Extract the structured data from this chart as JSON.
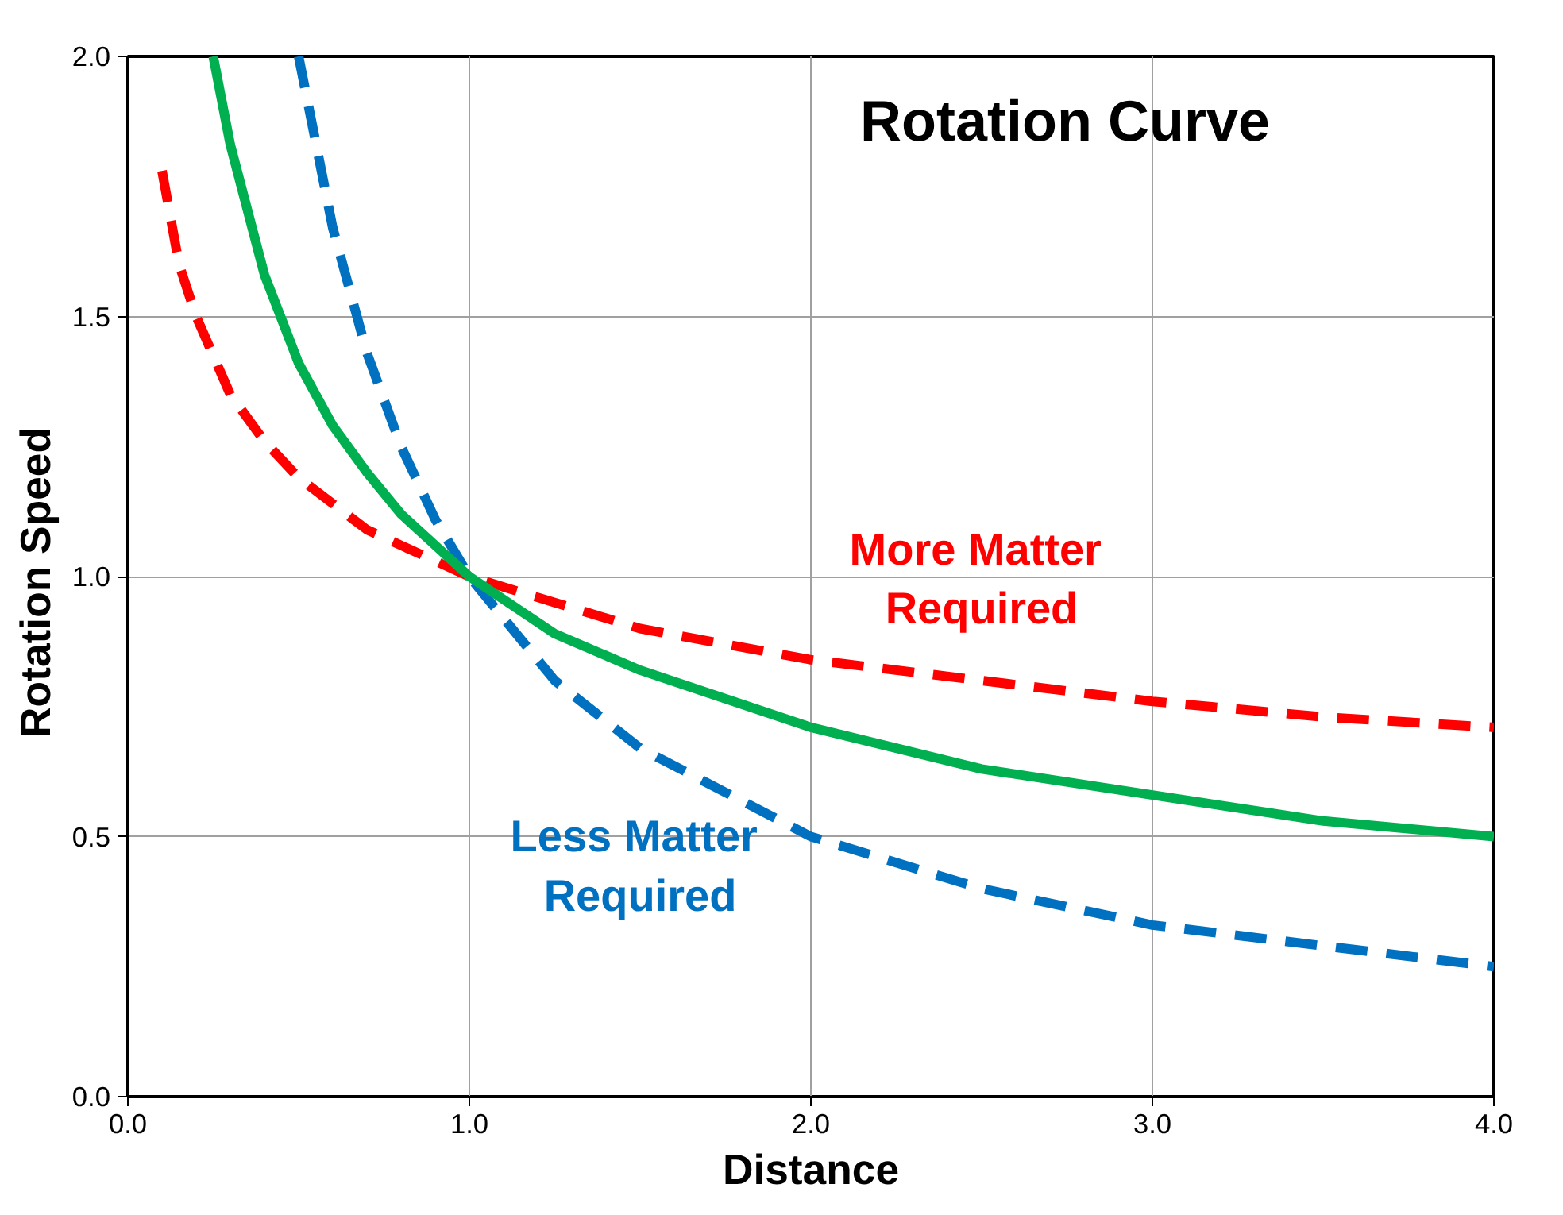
{
  "chart_data": {
    "type": "line",
    "title": "Rotation Curve",
    "xlabel": "Distance",
    "ylabel": "Rotation  Speed",
    "xlim": [
      0,
      4
    ],
    "ylim": [
      0,
      2
    ],
    "xticks": [
      {
        "value": 0,
        "label": "0.0"
      },
      {
        "value": 1,
        "label": "1.0"
      },
      {
        "value": 2,
        "label": "2.0"
      },
      {
        "value": 3,
        "label": "3.0"
      },
      {
        "value": 4,
        "label": "4.0"
      }
    ],
    "yticks": [
      {
        "value": 0,
        "label": "0.0"
      },
      {
        "value": 0.5,
        "label": "0.5"
      },
      {
        "value": 1,
        "label": "1.0"
      },
      {
        "value": 1.5,
        "label": "1.5"
      },
      {
        "value": 2,
        "label": "2.0"
      }
    ],
    "grid": true,
    "series": [
      {
        "name": "More  Matter\nRequired",
        "color": "#ff0000",
        "line_style": "dashed",
        "x": [
          0.1,
          0.15,
          0.2,
          0.3,
          0.4,
          0.5,
          0.7,
          1.0,
          1.5,
          2.0,
          2.5,
          3.0,
          3.5,
          4.0
        ],
        "values": [
          1.78,
          1.6,
          1.5,
          1.35,
          1.26,
          1.19,
          1.09,
          1.0,
          0.9,
          0.84,
          0.8,
          0.76,
          0.73,
          0.71
        ]
      },
      {
        "name": "Less  Matter\nRequired",
        "color": "#0070c0",
        "line_style": "dashed",
        "x": [
          0.5,
          0.6,
          0.7,
          0.8,
          0.9,
          1.0,
          1.25,
          1.5,
          2.0,
          2.5,
          3.0,
          3.5,
          4.0
        ],
        "values": [
          2.0,
          1.67,
          1.43,
          1.25,
          1.11,
          1.0,
          0.8,
          0.67,
          0.5,
          0.4,
          0.33,
          0.29,
          0.25
        ]
      },
      {
        "color": "#00b050",
        "line_style": "solid",
        "x": [
          0.25,
          0.3,
          0.4,
          0.5,
          0.6,
          0.7,
          0.8,
          1.0,
          1.25,
          1.5,
          2.0,
          2.5,
          3.0,
          3.5,
          4.0
        ],
        "values": [
          2.0,
          1.83,
          1.58,
          1.41,
          1.29,
          1.2,
          1.12,
          1.0,
          0.89,
          0.82,
          0.71,
          0.63,
          0.58,
          0.53,
          0.5
        ]
      }
    ]
  }
}
